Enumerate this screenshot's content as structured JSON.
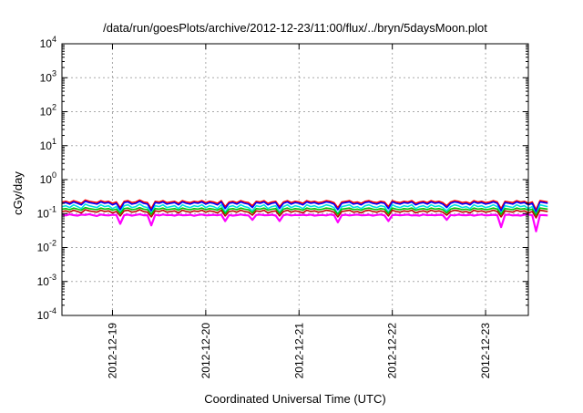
{
  "chart_data": {
    "type": "line",
    "title": "/data/run/goesPlots/archive/2012-12-23/11:00/flux/../bryn/5daysMoon.plot",
    "xlabel": "Coordinated Universal Time (UTC)",
    "ylabel": "cGy/day",
    "yscale": "log",
    "ylim": [
      0.0001,
      10000
    ],
    "y_ticks": [
      {
        "value": 0.0001,
        "base": "10",
        "exp": "-4"
      },
      {
        "value": 0.001,
        "base": "10",
        "exp": "-3"
      },
      {
        "value": 0.01,
        "base": "10",
        "exp": "-2"
      },
      {
        "value": 0.1,
        "base": "10",
        "exp": "-1"
      },
      {
        "value": 1,
        "base": "10",
        "exp": "0"
      },
      {
        "value": 10,
        "base": "10",
        "exp": "1"
      },
      {
        "value": 100,
        "base": "10",
        "exp": "2"
      },
      {
        "value": 1000,
        "base": "10",
        "exp": "3"
      },
      {
        "value": 10000,
        "base": "10",
        "exp": "4"
      }
    ],
    "xlim": [
      "2012-12-18 11:00",
      "2012-12-23 11:00"
    ],
    "x_ticks": [
      "2012-12-19",
      "2012-12-20",
      "2012-12-21",
      "2012-12-22",
      "2012-12-23"
    ],
    "grid": true,
    "sample_interval_hours": 1,
    "series": [
      {
        "color": "#ff00ff",
        "base": 0.09,
        "values": [
          0.092,
          0.088,
          0.095,
          0.09,
          0.087,
          0.093,
          0.091,
          0.096,
          0.089,
          0.085,
          0.094,
          0.09,
          0.088,
          0.092,
          0.091,
          0.05,
          0.09,
          0.093,
          0.087,
          0.091,
          0.095,
          0.089,
          0.09,
          0.045,
          0.092,
          0.088,
          0.094,
          0.09,
          0.091,
          0.087,
          0.093,
          0.089,
          0.09,
          0.092,
          0.086,
          0.091,
          0.094,
          0.088,
          0.09,
          0.092,
          0.089,
          0.093,
          0.06,
          0.091,
          0.087,
          0.09,
          0.094,
          0.09,
          0.088,
          0.065,
          0.091,
          0.093,
          0.089,
          0.09,
          0.092,
          0.087,
          0.06,
          0.09,
          0.094,
          0.088,
          0.091,
          0.09,
          0.092,
          0.089,
          0.093,
          0.087,
          0.09,
          0.091,
          0.088,
          0.094,
          0.09,
          0.055,
          0.09,
          0.092,
          0.088,
          0.091,
          0.093,
          0.089,
          0.09,
          0.092,
          0.087,
          0.091,
          0.094,
          0.088,
          0.06,
          0.09,
          0.092,
          0.089,
          0.091,
          0.093,
          0.088,
          0.09,
          0.087,
          0.094,
          0.09,
          0.091,
          0.089,
          0.092,
          0.09,
          0.065,
          0.091,
          0.088,
          0.093,
          0.09,
          0.089,
          0.092,
          0.087,
          0.091,
          0.094,
          0.088,
          0.09,
          0.092,
          0.089,
          0.04,
          0.091,
          0.093,
          0.088,
          0.09,
          0.087,
          0.092,
          0.094,
          0.089,
          0.03,
          0.091,
          0.09,
          0.088
        ]
      },
      {
        "color": "#ff0000",
        "base": 0.22,
        "values": [
          0.22,
          0.23,
          0.21,
          0.24,
          0.22,
          0.2,
          0.25,
          0.23,
          0.22,
          0.21,
          0.24,
          0.22,
          0.23,
          0.2,
          0.22,
          0.15,
          0.23,
          0.24,
          0.21,
          0.22,
          0.25,
          0.22,
          0.21,
          0.14,
          0.23,
          0.22,
          0.24,
          0.21,
          0.22,
          0.23,
          0.2,
          0.24,
          0.22,
          0.21,
          0.23,
          0.22,
          0.24,
          0.21,
          0.23,
          0.22,
          0.2,
          0.24,
          0.16,
          0.22,
          0.23,
          0.21,
          0.24,
          0.22,
          0.21,
          0.17,
          0.23,
          0.22,
          0.24,
          0.2,
          0.22,
          0.23,
          0.16,
          0.22,
          0.24,
          0.21,
          0.23,
          0.22,
          0.2,
          0.24,
          0.22,
          0.23,
          0.21,
          0.22,
          0.24,
          0.23,
          0.21,
          0.15,
          0.22,
          0.23,
          0.24,
          0.21,
          0.22,
          0.2,
          0.23,
          0.24,
          0.22,
          0.21,
          0.23,
          0.22,
          0.16,
          0.24,
          0.22,
          0.21,
          0.23,
          0.22,
          0.24,
          0.2,
          0.22,
          0.23,
          0.21,
          0.24,
          0.22,
          0.23,
          0.21,
          0.17,
          0.22,
          0.24,
          0.23,
          0.21,
          0.22,
          0.2,
          0.24,
          0.22,
          0.23,
          0.21,
          0.22,
          0.24,
          0.22,
          0.14,
          0.23,
          0.22,
          0.21,
          0.24,
          0.22,
          0.23,
          0.2,
          0.22,
          0.13,
          0.24,
          0.23,
          0.22
        ]
      },
      {
        "color": "#0000ff",
        "base": 0.2,
        "values": [
          0.2,
          0.21,
          0.19,
          0.22,
          0.2,
          0.18,
          0.23,
          0.21,
          0.2,
          0.19,
          0.22,
          0.2,
          0.21,
          0.18,
          0.2,
          0.13,
          0.21,
          0.22,
          0.19,
          0.2,
          0.23,
          0.2,
          0.19,
          0.12,
          0.21,
          0.2,
          0.22,
          0.19,
          0.2,
          0.21,
          0.18,
          0.22,
          0.2,
          0.19,
          0.21,
          0.2,
          0.22,
          0.19,
          0.21,
          0.2,
          0.18,
          0.22,
          0.14,
          0.2,
          0.21,
          0.19,
          0.22,
          0.2,
          0.19,
          0.15,
          0.21,
          0.2,
          0.22,
          0.18,
          0.2,
          0.21,
          0.14,
          0.2,
          0.22,
          0.19,
          0.21,
          0.2,
          0.18,
          0.22,
          0.2,
          0.21,
          0.19,
          0.2,
          0.22,
          0.21,
          0.19,
          0.13,
          0.2,
          0.21,
          0.22,
          0.19,
          0.2,
          0.18,
          0.21,
          0.22,
          0.2,
          0.19,
          0.21,
          0.2,
          0.14,
          0.22,
          0.2,
          0.19,
          0.21,
          0.2,
          0.22,
          0.18,
          0.2,
          0.21,
          0.19,
          0.22,
          0.2,
          0.21,
          0.19,
          0.15,
          0.2,
          0.22,
          0.21,
          0.19,
          0.2,
          0.18,
          0.22,
          0.2,
          0.21,
          0.19,
          0.2,
          0.22,
          0.2,
          0.12,
          0.21,
          0.2,
          0.19,
          0.22,
          0.2,
          0.21,
          0.18,
          0.2,
          0.11,
          0.22,
          0.21,
          0.2
        ]
      },
      {
        "color": "#00e0e0",
        "base": 0.16,
        "values": [
          0.16,
          0.17,
          0.15,
          0.18,
          0.16,
          0.14,
          0.19,
          0.17,
          0.16,
          0.15,
          0.18,
          0.16,
          0.17,
          0.14,
          0.16,
          0.11,
          0.17,
          0.18,
          0.15,
          0.16,
          0.19,
          0.16,
          0.15,
          0.1,
          0.17,
          0.16,
          0.18,
          0.15,
          0.16,
          0.17,
          0.14,
          0.18,
          0.16,
          0.15,
          0.17,
          0.16,
          0.18,
          0.15,
          0.17,
          0.16,
          0.14,
          0.18,
          0.11,
          0.16,
          0.17,
          0.15,
          0.18,
          0.16,
          0.15,
          0.12,
          0.17,
          0.16,
          0.18,
          0.14,
          0.16,
          0.17,
          0.11,
          0.16,
          0.18,
          0.15,
          0.17,
          0.16,
          0.14,
          0.18,
          0.16,
          0.17,
          0.15,
          0.16,
          0.18,
          0.17,
          0.15,
          0.1,
          0.16,
          0.17,
          0.18,
          0.15,
          0.16,
          0.14,
          0.17,
          0.18,
          0.16,
          0.15,
          0.17,
          0.16,
          0.11,
          0.18,
          0.16,
          0.15,
          0.17,
          0.16,
          0.18,
          0.14,
          0.16,
          0.17,
          0.15,
          0.18,
          0.16,
          0.17,
          0.15,
          0.12,
          0.16,
          0.18,
          0.17,
          0.15,
          0.16,
          0.14,
          0.18,
          0.16,
          0.17,
          0.15,
          0.16,
          0.18,
          0.16,
          0.1,
          0.17,
          0.16,
          0.15,
          0.18,
          0.16,
          0.17,
          0.14,
          0.16,
          0.09,
          0.18,
          0.17,
          0.16
        ]
      },
      {
        "color": "#00c000",
        "base": 0.135,
        "values": [
          0.135,
          0.14,
          0.13,
          0.145,
          0.135,
          0.125,
          0.15,
          0.14,
          0.135,
          0.13,
          0.145,
          0.135,
          0.14,
          0.125,
          0.135,
          0.1,
          0.14,
          0.145,
          0.13,
          0.135,
          0.15,
          0.135,
          0.13,
          0.095,
          0.14,
          0.135,
          0.145,
          0.13,
          0.135,
          0.14,
          0.125,
          0.145,
          0.135,
          0.13,
          0.14,
          0.135,
          0.145,
          0.13,
          0.14,
          0.135,
          0.125,
          0.145,
          0.1,
          0.135,
          0.14,
          0.13,
          0.145,
          0.135,
          0.13,
          0.105,
          0.14,
          0.135,
          0.145,
          0.125,
          0.135,
          0.14,
          0.1,
          0.135,
          0.145,
          0.13,
          0.14,
          0.135,
          0.125,
          0.145,
          0.135,
          0.14,
          0.13,
          0.135,
          0.145,
          0.14,
          0.13,
          0.095,
          0.135,
          0.14,
          0.145,
          0.13,
          0.135,
          0.125,
          0.14,
          0.145,
          0.135,
          0.13,
          0.14,
          0.135,
          0.1,
          0.145,
          0.135,
          0.13,
          0.14,
          0.135,
          0.145,
          0.125,
          0.135,
          0.14,
          0.13,
          0.145,
          0.135,
          0.14,
          0.13,
          0.105,
          0.135,
          0.145,
          0.14,
          0.13,
          0.135,
          0.125,
          0.145,
          0.135,
          0.14,
          0.13,
          0.135,
          0.145,
          0.135,
          0.095,
          0.14,
          0.135,
          0.13,
          0.145,
          0.135,
          0.14,
          0.125,
          0.135,
          0.09,
          0.145,
          0.14,
          0.135
        ]
      },
      {
        "color": "#c00000",
        "base": 0.115,
        "values": [
          0.115,
          0.12,
          0.11,
          0.125,
          0.115,
          0.105,
          0.13,
          0.12,
          0.115,
          0.11,
          0.125,
          0.115,
          0.12,
          0.105,
          0.115,
          0.085,
          0.12,
          0.125,
          0.11,
          0.115,
          0.13,
          0.115,
          0.11,
          0.08,
          0.12,
          0.115,
          0.125,
          0.11,
          0.115,
          0.12,
          0.105,
          0.125,
          0.115,
          0.11,
          0.12,
          0.115,
          0.125,
          0.11,
          0.12,
          0.115,
          0.105,
          0.125,
          0.085,
          0.115,
          0.12,
          0.11,
          0.125,
          0.115,
          0.11,
          0.09,
          0.12,
          0.115,
          0.125,
          0.105,
          0.115,
          0.12,
          0.085,
          0.115,
          0.125,
          0.11,
          0.12,
          0.115,
          0.105,
          0.125,
          0.115,
          0.12,
          0.11,
          0.115,
          0.125,
          0.12,
          0.11,
          0.08,
          0.115,
          0.12,
          0.125,
          0.11,
          0.115,
          0.105,
          0.12,
          0.125,
          0.115,
          0.11,
          0.12,
          0.115,
          0.085,
          0.125,
          0.115,
          0.11,
          0.12,
          0.115,
          0.125,
          0.105,
          0.115,
          0.12,
          0.11,
          0.125,
          0.115,
          0.12,
          0.11,
          0.09,
          0.115,
          0.125,
          0.12,
          0.11,
          0.115,
          0.105,
          0.125,
          0.115,
          0.12,
          0.11,
          0.115,
          0.125,
          0.115,
          0.08,
          0.12,
          0.115,
          0.11,
          0.125,
          0.115,
          0.12,
          0.105,
          0.115,
          0.075,
          0.125,
          0.12,
          0.115
        ]
      }
    ]
  }
}
